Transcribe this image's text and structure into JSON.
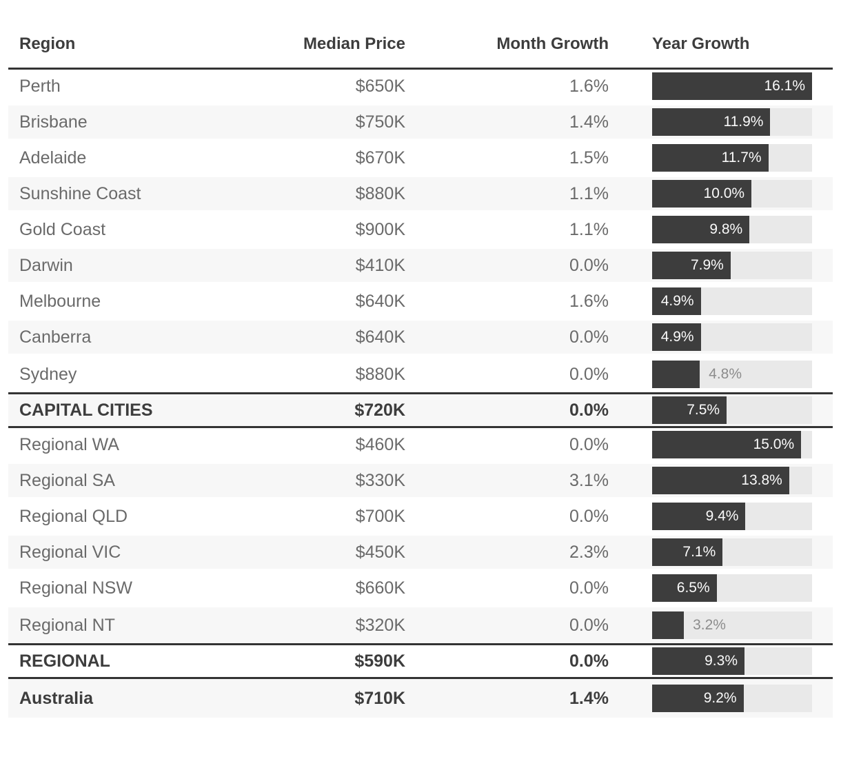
{
  "table": {
    "columns": [
      {
        "key": "region",
        "label": "Region",
        "align": "left"
      },
      {
        "key": "median_price",
        "label": "Median Price",
        "align": "right"
      },
      {
        "key": "month_growth",
        "label": "Month Growth",
        "align": "right"
      },
      {
        "key": "year_growth",
        "label": "Year Growth",
        "align": "left"
      }
    ],
    "rows": [
      {
        "region": "Perth",
        "median_price": "$650K",
        "month_growth": "1.6%",
        "year_growth_label": "16.1%",
        "year_growth_value": 16.1,
        "style": "normal"
      },
      {
        "region": "Brisbane",
        "median_price": "$750K",
        "month_growth": "1.4%",
        "year_growth_label": "11.9%",
        "year_growth_value": 11.9,
        "style": "normal"
      },
      {
        "region": "Adelaide",
        "median_price": "$670K",
        "month_growth": "1.5%",
        "year_growth_label": "11.7%",
        "year_growth_value": 11.7,
        "style": "normal"
      },
      {
        "region": "Sunshine Coast",
        "median_price": "$880K",
        "month_growth": "1.1%",
        "year_growth_label": "10.0%",
        "year_growth_value": 10.0,
        "style": "normal"
      },
      {
        "region": "Gold Coast",
        "median_price": "$900K",
        "month_growth": "1.1%",
        "year_growth_label": "9.8%",
        "year_growth_value": 9.8,
        "style": "normal"
      },
      {
        "region": "Darwin",
        "median_price": "$410K",
        "month_growth": "0.0%",
        "year_growth_label": "7.9%",
        "year_growth_value": 7.9,
        "style": "normal"
      },
      {
        "region": "Melbourne",
        "median_price": "$640K",
        "month_growth": "1.6%",
        "year_growth_label": "4.9%",
        "year_growth_value": 4.9,
        "style": "normal"
      },
      {
        "region": "Canberra",
        "median_price": "$640K",
        "month_growth": "0.0%",
        "year_growth_label": "4.9%",
        "year_growth_value": 4.9,
        "style": "normal"
      },
      {
        "region": "Sydney",
        "median_price": "$880K",
        "month_growth": "0.0%",
        "year_growth_label": "4.8%",
        "year_growth_value": 4.8,
        "style": "normal"
      },
      {
        "region": "CAPITAL CITIES",
        "median_price": "$720K",
        "month_growth": "0.0%",
        "year_growth_label": "7.5%",
        "year_growth_value": 7.5,
        "style": "section"
      },
      {
        "region": "Regional WA",
        "median_price": "$460K",
        "month_growth": "0.0%",
        "year_growth_label": "15.0%",
        "year_growth_value": 15.0,
        "style": "normal"
      },
      {
        "region": "Regional SA",
        "median_price": "$330K",
        "month_growth": "3.1%",
        "year_growth_label": "13.8%",
        "year_growth_value": 13.8,
        "style": "normal"
      },
      {
        "region": "Regional QLD",
        "median_price": "$700K",
        "month_growth": "0.0%",
        "year_growth_label": "9.4%",
        "year_growth_value": 9.4,
        "style": "normal"
      },
      {
        "region": "Regional VIC",
        "median_price": "$450K",
        "month_growth": "2.3%",
        "year_growth_label": "7.1%",
        "year_growth_value": 7.1,
        "style": "normal"
      },
      {
        "region": "Regional NSW",
        "median_price": "$660K",
        "month_growth": "0.0%",
        "year_growth_label": "6.5%",
        "year_growth_value": 6.5,
        "style": "normal"
      },
      {
        "region": "Regional NT",
        "median_price": "$320K",
        "month_growth": "0.0%",
        "year_growth_label": "3.2%",
        "year_growth_value": 3.2,
        "style": "normal"
      },
      {
        "region": "REGIONAL",
        "median_price": "$590K",
        "month_growth": "0.0%",
        "year_growth_label": "9.3%",
        "year_growth_value": 9.3,
        "style": "section"
      },
      {
        "region": "Australia",
        "median_price": "$710K",
        "month_growth": "1.4%",
        "year_growth_label": "9.2%",
        "year_growth_value": 9.2,
        "style": "total"
      }
    ]
  },
  "colors": {
    "bar": "#3d3d3d",
    "bar_track": "#e9e9e9",
    "row_alt_background": "#f7f7f7",
    "rule_line": "#333333",
    "header_text": "#3d3d3d",
    "body_text": "#6a6a6a",
    "bar_label_inside": "#fafafa",
    "bar_label_outside": "#8c8c8c"
  },
  "chart_data": {
    "type": "table",
    "columns": [
      "Region",
      "Median Price",
      "Month Growth",
      "Year Growth"
    ],
    "rows": [
      [
        "Perth",
        "$650K",
        "1.6%",
        "16.1%"
      ],
      [
        "Brisbane",
        "$750K",
        "1.4%",
        "11.9%"
      ],
      [
        "Adelaide",
        "$670K",
        "1.5%",
        "11.7%"
      ],
      [
        "Sunshine Coast",
        "$880K",
        "1.1%",
        "10.0%"
      ],
      [
        "Gold Coast",
        "$900K",
        "1.1%",
        "9.8%"
      ],
      [
        "Darwin",
        "$410K",
        "0.0%",
        "7.9%"
      ],
      [
        "Melbourne",
        "$640K",
        "1.6%",
        "4.9%"
      ],
      [
        "Canberra",
        "$640K",
        "0.0%",
        "4.9%"
      ],
      [
        "Sydney",
        "$880K",
        "0.0%",
        "4.8%"
      ],
      [
        "CAPITAL CITIES",
        "$720K",
        "0.0%",
        "7.5%"
      ],
      [
        "Regional WA",
        "$460K",
        "0.0%",
        "15.0%"
      ],
      [
        "Regional SA",
        "$330K",
        "3.1%",
        "13.8%"
      ],
      [
        "Regional QLD",
        "$700K",
        "0.0%",
        "9.4%"
      ],
      [
        "Regional VIC",
        "$450K",
        "2.3%",
        "7.1%"
      ],
      [
        "Regional NSW",
        "$660K",
        "0.0%",
        "6.5%"
      ],
      [
        "Regional NT",
        "$320K",
        "0.0%",
        "3.2%"
      ],
      [
        "REGIONAL",
        "$590K",
        "0.0%",
        "9.3%"
      ],
      [
        "Australia",
        "$710K",
        "1.4%",
        "9.2%"
      ]
    ],
    "embedded_bar_chart": {
      "type": "bar",
      "orientation": "horizontal",
      "column": "Year Growth",
      "categories": [
        "Perth",
        "Brisbane",
        "Adelaide",
        "Sunshine Coast",
        "Gold Coast",
        "Darwin",
        "Melbourne",
        "Canberra",
        "Sydney",
        "CAPITAL CITIES",
        "Regional WA",
        "Regional SA",
        "Regional QLD",
        "Regional VIC",
        "Regional NSW",
        "Regional NT",
        "REGIONAL",
        "Australia"
      ],
      "values": [
        16.1,
        11.9,
        11.7,
        10.0,
        9.8,
        7.9,
        4.9,
        4.9,
        4.8,
        7.5,
        15.0,
        13.8,
        9.4,
        7.1,
        6.5,
        3.2,
        9.3,
        9.2
      ],
      "xlim": [
        0,
        16.1
      ],
      "grid": false,
      "legend": false
    }
  }
}
